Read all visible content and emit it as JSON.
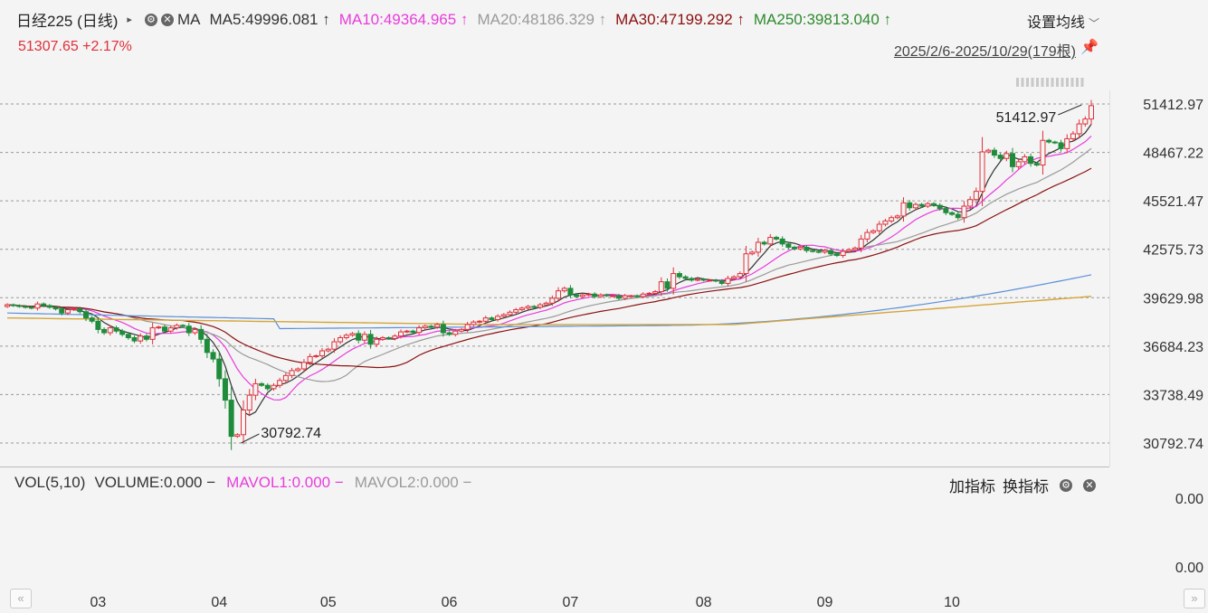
{
  "header": {
    "title": "日经225 (日线)",
    "ma_label": "MA",
    "ma": [
      {
        "label": "MA5:49996.081",
        "arrow": "↑",
        "color": "#333333"
      },
      {
        "label": "MA10:49364.965",
        "arrow": "↑",
        "color": "#e83cdc"
      },
      {
        "label": "MA20:48186.329",
        "arrow": "↑",
        "color": "#9a9a9a"
      },
      {
        "label": "MA30:47199.292",
        "arrow": "↑",
        "color": "#8b1010"
      },
      {
        "label": "MA250:39813.040",
        "arrow": "↑",
        "color": "#2f8a2f"
      }
    ],
    "settings_label": "设置均线",
    "last_price": "51307.65  +2.17%",
    "date_range": "2025/2/6-2025/10/29(179根)"
  },
  "indicator": {
    "name": "VOL(5,10)",
    "items": [
      {
        "label": "VOLUME:0.000",
        "color": "#333333"
      },
      {
        "label": "MAVOL1:0.000",
        "color": "#e83cdc"
      },
      {
        "label": "MAVOL2:0.000",
        "color": "#9a9a9a"
      }
    ],
    "add_label": "加指标",
    "switch_label": "换指标",
    "y_ticks": [
      "0.00",
      "0.00"
    ]
  },
  "colors": {
    "up": "#e0303a",
    "down": "#1e8c3a",
    "grid": "#999999"
  },
  "chart_data": {
    "type": "candlestick",
    "y_ticks": [
      "51412.97",
      "48467.22",
      "45521.47",
      "42575.73",
      "39629.98",
      "36684.23",
      "33738.49",
      "30792.74"
    ],
    "ylim": [
      30792.74,
      51412.97
    ],
    "x_ticks": [
      {
        "label": "03",
        "index": 15
      },
      {
        "label": "04",
        "index": 35
      },
      {
        "label": "05",
        "index": 53
      },
      {
        "label": "06",
        "index": 73
      },
      {
        "label": "07",
        "index": 93
      },
      {
        "label": "08",
        "index": 115
      },
      {
        "label": "09",
        "index": 135
      },
      {
        "label": "10",
        "index": 156
      }
    ],
    "annotations": [
      {
        "text": "51412.97",
        "value": 51412.97,
        "index": 178
      },
      {
        "text": "30792.74",
        "value": 30792.74,
        "index": 38
      }
    ],
    "close": [
      39200,
      39150,
      39100,
      39050,
      39000,
      39250,
      39150,
      39050,
      38950,
      38700,
      38900,
      38950,
      38780,
      38400,
      38200,
      37700,
      37500,
      37800,
      37600,
      37400,
      37200,
      37000,
      37300,
      37100,
      37800,
      37850,
      37600,
      37800,
      37950,
      37900,
      37500,
      37700,
      37100,
      36300,
      35900,
      34700,
      33400,
      31200,
      31300,
      32800,
      33700,
      34400,
      34300,
      34100,
      34300,
      34600,
      34900,
      35200,
      35300,
      35700,
      36050,
      36100,
      36400,
      36500,
      36950,
      37200,
      37350,
      37450,
      37050,
      37400,
      36800,
      37100,
      37200,
      37150,
      37300,
      37550,
      37600,
      37520,
      37800,
      37900,
      37850,
      38000,
      37500,
      37400,
      37600,
      37700,
      38000,
      38150,
      38200,
      38400,
      38300,
      38500,
      38600,
      38750,
      38900,
      39000,
      39100,
      39050,
      39200,
      39300,
      39600,
      40050,
      40200,
      39800,
      39700,
      39800,
      39850,
      39700,
      39800,
      39750,
      39750,
      39600,
      39750,
      39750,
      39700,
      39850,
      39900,
      40000,
      40600,
      40200,
      41100,
      40900,
      40800,
      40700,
      40750,
      40700,
      40700,
      40650,
      40500,
      40800,
      40900,
      41100,
      42300,
      42400,
      43000,
      42900,
      43300,
      43200,
      42900,
      42700,
      42600,
      42700,
      42500,
      42450,
      42400,
      42500,
      42300,
      42200,
      42450,
      42550,
      42650,
      43200,
      43600,
      43700,
      44100,
      44300,
      44500,
      44600,
      45400,
      45100,
      45300,
      45200,
      45350,
      45250,
      45050,
      44800,
      44700,
      44500,
      45200,
      45600,
      46100,
      48500,
      48600,
      48300,
      48100,
      48400,
      47600,
      47900,
      48200,
      47800,
      47700,
      49200,
      49100,
      49050,
      48700,
      49300,
      49600,
      50200,
      50500,
      51308
    ]
  }
}
